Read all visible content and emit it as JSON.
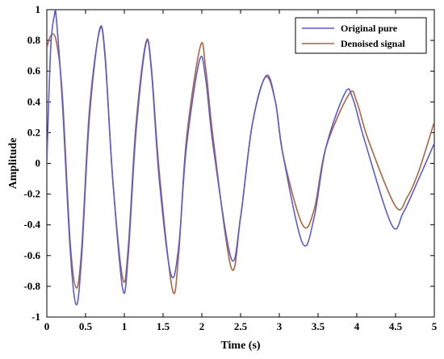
{
  "chart_data": {
    "type": "line",
    "title": "",
    "xlabel": "Time (s)",
    "ylabel": "Amplitude",
    "xlim": [
      0,
      5
    ],
    "ylim": [
      -1,
      1
    ],
    "grid": false,
    "legend_position": "top-right",
    "x_ticks": [
      "0",
      "0.5",
      "1",
      "1.5",
      "2",
      "2.5",
      "3",
      "3.5",
      "4",
      "4.5",
      "5"
    ],
    "y_ticks": [
      "1",
      "0.8",
      "0.6",
      "0.4",
      "0.2",
      "0",
      "-0.2",
      "-0.4",
      "-0.6",
      "-0.8",
      "-1"
    ],
    "series": [
      {
        "name": "Original pure",
        "color": "#5b5bd6",
        "x": [
          0,
          0.05,
          0.1,
          0.12,
          0.2,
          0.3,
          0.38,
          0.45,
          0.55,
          0.68,
          0.75,
          0.85,
          0.98,
          1.05,
          1.15,
          1.28,
          1.35,
          1.45,
          1.6,
          1.7,
          1.8,
          1.97,
          2.05,
          2.15,
          2.38,
          2.5,
          2.65,
          2.83,
          2.95,
          3.05,
          3.3,
          3.45,
          3.6,
          3.85,
          3.95,
          4.1,
          4.45,
          4.6,
          4.8,
          5.0
        ],
        "y": [
          0.0,
          0.75,
          0.97,
          0.96,
          0.4,
          -0.55,
          -0.92,
          -0.6,
          0.3,
          0.87,
          0.7,
          -0.1,
          -0.82,
          -0.6,
          0.2,
          0.78,
          0.6,
          -0.1,
          -0.72,
          -0.55,
          0.1,
          0.67,
          0.55,
          0.1,
          -0.62,
          -0.35,
          0.25,
          0.57,
          0.4,
          0.05,
          -0.52,
          -0.35,
          0.1,
          0.46,
          0.42,
          0.15,
          -0.4,
          -0.32,
          -0.1,
          0.13
        ]
      },
      {
        "name": "Denoised signal",
        "color": "#b0643f",
        "x": [
          0,
          0.05,
          0.12,
          0.2,
          0.3,
          0.38,
          0.45,
          0.55,
          0.68,
          0.75,
          0.85,
          0.98,
          1.05,
          1.15,
          1.28,
          1.35,
          1.45,
          1.62,
          1.7,
          1.8,
          1.98,
          2.05,
          2.15,
          2.38,
          2.5,
          2.65,
          2.82,
          2.95,
          3.05,
          3.3,
          3.45,
          3.6,
          3.9,
          4.0,
          4.15,
          4.5,
          4.65,
          4.8,
          5.0
        ],
        "y": [
          0.75,
          0.83,
          0.8,
          0.45,
          -0.5,
          -0.81,
          -0.55,
          0.35,
          0.86,
          0.72,
          -0.1,
          -0.75,
          -0.55,
          0.25,
          0.79,
          0.62,
          -0.05,
          -0.82,
          -0.6,
          0.15,
          0.76,
          0.62,
          0.15,
          -0.68,
          -0.35,
          0.25,
          0.56,
          0.4,
          0.05,
          -0.4,
          -0.3,
          0.1,
          0.45,
          0.4,
          0.15,
          -0.28,
          -0.22,
          -0.05,
          0.27
        ]
      }
    ]
  }
}
